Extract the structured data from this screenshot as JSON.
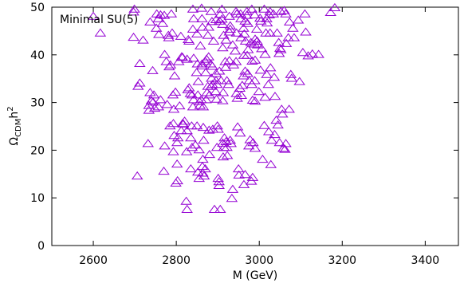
{
  "chart_data": {
    "type": "scatter",
    "title": "",
    "xlabel": "M (GeV)",
    "ylabel": {
      "main": "Ω",
      "sub": "CDM",
      "tail": "h",
      "sup": "2"
    },
    "xlim": [
      2500,
      3480
    ],
    "ylim": [
      0,
      50
    ],
    "xticks": [
      2600,
      2800,
      3000,
      3200,
      3400
    ],
    "yticks": [
      0,
      10,
      20,
      30,
      40,
      50
    ],
    "grid": false,
    "legend_position": "top-left",
    "series": [
      {
        "name": "Minimal SU(5)",
        "marker": "open-triangle",
        "color": "#9400d3",
        "points": [
          [
            2600,
            48
          ],
          [
            2617,
            44.5
          ],
          [
            2697,
            48.9
          ],
          [
            2699,
            49.5
          ],
          [
            2697,
            43.6
          ],
          [
            2720,
            43
          ],
          [
            2712,
            38.1
          ],
          [
            2708,
            33.3
          ],
          [
            2712,
            34
          ],
          [
            2706,
            14.5
          ],
          [
            2732,
            21.3
          ],
          [
            2737,
            46.8
          ],
          [
            2743,
            36.6
          ],
          [
            2737,
            32
          ],
          [
            2734,
            29.3
          ],
          [
            2740,
            30.3
          ],
          [
            2744,
            30
          ],
          [
            2746,
            31.5
          ],
          [
            2734,
            28.3
          ],
          [
            2748,
            28.7
          ],
          [
            2752,
            45.5
          ],
          [
            2757,
            47.5
          ],
          [
            2753,
            48.5
          ],
          [
            2762,
            48.3
          ],
          [
            2758,
            44.2
          ],
          [
            2762,
            30.5
          ],
          [
            2757,
            29
          ],
          [
            2767,
            46.5
          ],
          [
            2771,
            48.2
          ],
          [
            2772,
            40
          ],
          [
            2776,
            38.5
          ],
          [
            2778,
            29.5
          ],
          [
            2772,
            20.8
          ],
          [
            2770,
            15.5
          ],
          [
            2781,
            44
          ],
          [
            2782,
            43.5
          ],
          [
            2783,
            37.4
          ],
          [
            2786,
            37.8
          ],
          [
            2788,
            48.5
          ],
          [
            2790,
            44.5
          ],
          [
            2792,
            31.5
          ],
          [
            2785,
            25
          ],
          [
            2793,
            25.5
          ],
          [
            2796,
            35.5
          ],
          [
            2798,
            32.1
          ],
          [
            2794,
            28.5
          ],
          [
            2795,
            23
          ],
          [
            2793,
            19.6
          ],
          [
            2799,
            13
          ],
          [
            2804,
            22.5
          ],
          [
            2808,
            29.2
          ],
          [
            2802,
            21.5
          ],
          [
            2802,
            17
          ],
          [
            2803,
            13.5
          ],
          [
            2811,
            43.8
          ],
          [
            2806,
            38.5
          ],
          [
            2813,
            39.5
          ],
          [
            2815,
            39.4
          ],
          [
            2817,
            25.4
          ],
          [
            2820,
            26
          ],
          [
            2815,
            25.5
          ],
          [
            2812,
            24
          ],
          [
            2824,
            9.2
          ],
          [
            2826,
            7.5
          ],
          [
            2826,
            24
          ],
          [
            2825,
            19.6
          ],
          [
            2829,
            43.1
          ],
          [
            2831,
            42.8
          ],
          [
            2826,
            39
          ],
          [
            2831,
            33
          ],
          [
            2828,
            32.6
          ],
          [
            2834,
            31.8
          ],
          [
            2837,
            25
          ],
          [
            2835,
            16
          ],
          [
            2835,
            22.5
          ],
          [
            2840,
            49.5
          ],
          [
            2842,
            47.5
          ],
          [
            2840,
            45.3
          ],
          [
            2842,
            39.2
          ],
          [
            2838,
            31.5
          ],
          [
            2842,
            30.5
          ],
          [
            2840,
            29
          ],
          [
            2838,
            20.5
          ],
          [
            2846,
            21
          ],
          [
            2850,
            44.3
          ],
          [
            2851,
            38
          ],
          [
            2849,
            36.2
          ],
          [
            2853,
            34.3
          ],
          [
            2852,
            31.5
          ],
          [
            2856,
            30.1
          ],
          [
            2857,
            29.3
          ],
          [
            2850,
            25
          ],
          [
            2855,
            20
          ],
          [
            2852,
            15.3
          ],
          [
            2855,
            14
          ],
          [
            2861,
            49.7
          ],
          [
            2862,
            47.5
          ],
          [
            2863,
            45.7
          ],
          [
            2858,
            41.8
          ],
          [
            2862,
            38
          ],
          [
            2862,
            37.6
          ],
          [
            2860,
            30.5
          ],
          [
            2865,
            29
          ],
          [
            2865,
            24.7
          ],
          [
            2866,
            22
          ],
          [
            2864,
            18
          ],
          [
            2863,
            16.5
          ],
          [
            2864,
            15.1
          ],
          [
            2867,
            14.5
          ],
          [
            2870,
            38.5
          ],
          [
            2873,
            39
          ],
          [
            2871,
            36.2
          ],
          [
            2874,
            32
          ],
          [
            2872,
            30.5
          ],
          [
            2870,
            16
          ],
          [
            2876,
            44
          ],
          [
            2878,
            45.7
          ],
          [
            2878,
            39.5
          ],
          [
            2876,
            33.3
          ],
          [
            2880,
            31.5
          ],
          [
            2879,
            24.1
          ],
          [
            2880,
            19
          ],
          [
            2884,
            49
          ],
          [
            2886,
            46.9
          ],
          [
            2883,
            38
          ],
          [
            2887,
            37.5
          ],
          [
            2885,
            35
          ],
          [
            2884,
            33.3
          ],
          [
            2890,
            42.8
          ],
          [
            2887,
            33.7
          ],
          [
            2888,
            24.3
          ],
          [
            2892,
            7.5
          ],
          [
            2896,
            47.3
          ],
          [
            2896,
            34.5
          ],
          [
            2896,
            36
          ],
          [
            2898,
            33.7
          ],
          [
            2895,
            32.2
          ],
          [
            2897,
            30.6
          ],
          [
            2899,
            25
          ],
          [
            2901,
            24.3
          ],
          [
            2898,
            20.5
          ],
          [
            2901,
            14
          ],
          [
            2903,
            13.3
          ],
          [
            2903,
            12.5
          ],
          [
            2906,
            48.4
          ],
          [
            2904,
            47
          ],
          [
            2904,
            36.5
          ],
          [
            2908,
            34.5
          ],
          [
            2906,
            7.5
          ],
          [
            2910,
            49.5
          ],
          [
            2910,
            47.4
          ],
          [
            2912,
            46.3
          ],
          [
            2914,
            44
          ],
          [
            2912,
            41.4
          ],
          [
            2913,
            32
          ],
          [
            2912,
            30.3
          ],
          [
            2916,
            22.5
          ],
          [
            2912,
            21.4
          ],
          [
            2915,
            20.5
          ],
          [
            2913,
            18.5
          ],
          [
            2920,
            43
          ],
          [
            2918,
            38.5
          ],
          [
            2919,
            37.3
          ],
          [
            2922,
            34.5
          ],
          [
            2920,
            21.7
          ],
          [
            2922,
            20.5
          ],
          [
            2923,
            18.8
          ],
          [
            2928,
            48
          ],
          [
            2930,
            46
          ],
          [
            2930,
            45.3
          ],
          [
            2928,
            44.7
          ],
          [
            2928,
            38.7
          ],
          [
            2926,
            33.7
          ],
          [
            2930,
            22
          ],
          [
            2932,
            21.3
          ],
          [
            2936,
            42
          ],
          [
            2938,
            37.8
          ],
          [
            2936,
            11.7
          ],
          [
            2934,
            9.8
          ],
          [
            2944,
            49
          ],
          [
            2946,
            48.5
          ],
          [
            2945,
            44.5
          ],
          [
            2942,
            40.7
          ],
          [
            2944,
            38.5
          ],
          [
            2945,
            31.8
          ],
          [
            2947,
            30.8
          ],
          [
            2948,
            24.8
          ],
          [
            2950,
            16
          ],
          [
            2951,
            14.7
          ],
          [
            2955,
            48.5
          ],
          [
            2956,
            47.5
          ],
          [
            2956,
            43.5
          ],
          [
            2959,
            33.5
          ],
          [
            2953,
            32.9
          ],
          [
            2957,
            31.4
          ],
          [
            2954,
            23.5
          ],
          [
            2962,
            45.5
          ],
          [
            2964,
            44.3
          ],
          [
            2963,
            39.8
          ],
          [
            2962,
            35.5
          ],
          [
            2966,
            47
          ],
          [
            2967,
            42.8
          ],
          [
            2966,
            36.5
          ],
          [
            2966,
            14.8
          ],
          [
            2963,
            12.7
          ],
          [
            2970,
            49
          ],
          [
            2970,
            48.2
          ],
          [
            2972,
            46.5
          ],
          [
            2973,
            41
          ],
          [
            2971,
            39.8
          ],
          [
            2972,
            36
          ],
          [
            2976,
            34.5
          ],
          [
            2978,
            22.1
          ],
          [
            2975,
            20.8
          ],
          [
            2982,
            49.5
          ],
          [
            2980,
            42.5
          ],
          [
            2983,
            38.6
          ],
          [
            2982,
            33.7
          ],
          [
            2984,
            30.4
          ],
          [
            2984,
            14.2
          ],
          [
            2981,
            13.4
          ],
          [
            2985,
            21.5
          ],
          [
            2989,
            48.3
          ],
          [
            2990,
            43.2
          ],
          [
            2988,
            42.2
          ],
          [
            2990,
            38.8
          ],
          [
            2989,
            34.5
          ],
          [
            2990,
            30.2
          ],
          [
            2990,
            20.3
          ],
          [
            2994,
            45.3
          ],
          [
            2995,
            42.8
          ],
          [
            2996,
            42
          ],
          [
            2999,
            32.2
          ],
          [
            3002,
            47.6
          ],
          [
            3004,
            47
          ],
          [
            3006,
            41.2
          ],
          [
            3003,
            36.7
          ],
          [
            3008,
            18
          ],
          [
            3012,
            49.5
          ],
          [
            3016,
            44.5
          ],
          [
            3014,
            40
          ],
          [
            3014,
            31
          ],
          [
            3012,
            25.1
          ],
          [
            3018,
            47.5
          ],
          [
            3019,
            46.6
          ],
          [
            3018,
            35.8
          ],
          [
            3022,
            33.7
          ],
          [
            3023,
            23.8
          ],
          [
            3026,
            49
          ],
          [
            3024,
            48.3
          ],
          [
            3026,
            44.5
          ],
          [
            3027,
            37.2
          ],
          [
            3028,
            16.9
          ],
          [
            3030,
            22
          ],
          [
            3034,
            48.5
          ],
          [
            3036,
            35.2
          ],
          [
            3038,
            31.2
          ],
          [
            3037,
            23.2
          ],
          [
            3041,
            26.2
          ],
          [
            3043,
            44.5
          ],
          [
            3045,
            25.2
          ],
          [
            3047,
            42.5
          ],
          [
            3048,
            40.2
          ],
          [
            3049,
            21.5
          ],
          [
            3052,
            49
          ],
          [
            3050,
            41.3
          ],
          [
            3052,
            41
          ],
          [
            3054,
            28.5
          ],
          [
            3056,
            27.5
          ],
          [
            3060,
            49.2
          ],
          [
            3058,
            20.3
          ],
          [
            3064,
            48.5
          ],
          [
            3062,
            20.1
          ],
          [
            3065,
            42.3
          ],
          [
            3064,
            21.3
          ],
          [
            3070,
            43.5
          ],
          [
            3073,
            46.8
          ],
          [
            3076,
            35.8
          ],
          [
            3078,
            35
          ],
          [
            3081,
            45.5
          ],
          [
            3084,
            43.5
          ],
          [
            3072,
            28.5
          ],
          [
            3094,
            47.2
          ],
          [
            3097,
            34.3
          ],
          [
            3105,
            40.4
          ],
          [
            3110,
            48.5
          ],
          [
            3112,
            44.7
          ],
          [
            3118,
            39.7
          ],
          [
            3128,
            40.1
          ],
          [
            3143,
            40
          ],
          [
            3172,
            48.8
          ],
          [
            3182,
            49.8
          ]
        ]
      }
    ]
  }
}
